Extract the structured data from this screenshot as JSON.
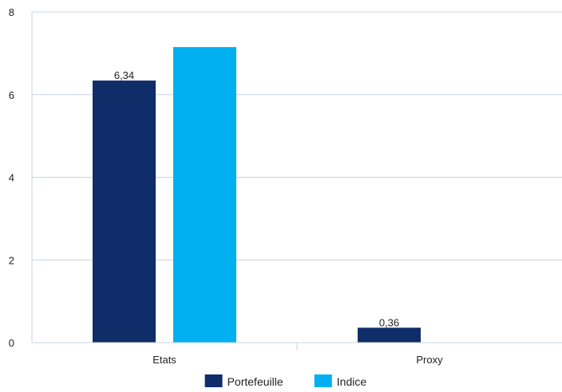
{
  "chart_data": {
    "type": "bar",
    "categories": [
      "Etats",
      "Proxy"
    ],
    "series": [
      {
        "name": "Portefeuille",
        "values": [
          6.34,
          0.36
        ],
        "labels": [
          "6,34",
          "0,36"
        ],
        "color": "#0f2d69"
      },
      {
        "name": "Indice",
        "values": [
          7.15,
          0
        ],
        "labels": [
          "",
          ""
        ],
        "color": "#00b0f0"
      }
    ],
    "ylim": [
      0,
      8
    ],
    "yticks": [
      0,
      2,
      4,
      6,
      8
    ],
    "ytick_labels": [
      "0",
      "2",
      "4",
      "6",
      "8"
    ],
    "grid": true,
    "legend_position": "bottom",
    "colors": {
      "grid": "#c9d3e0",
      "axis": "#c9d3e0",
      "text": "#222222"
    }
  }
}
